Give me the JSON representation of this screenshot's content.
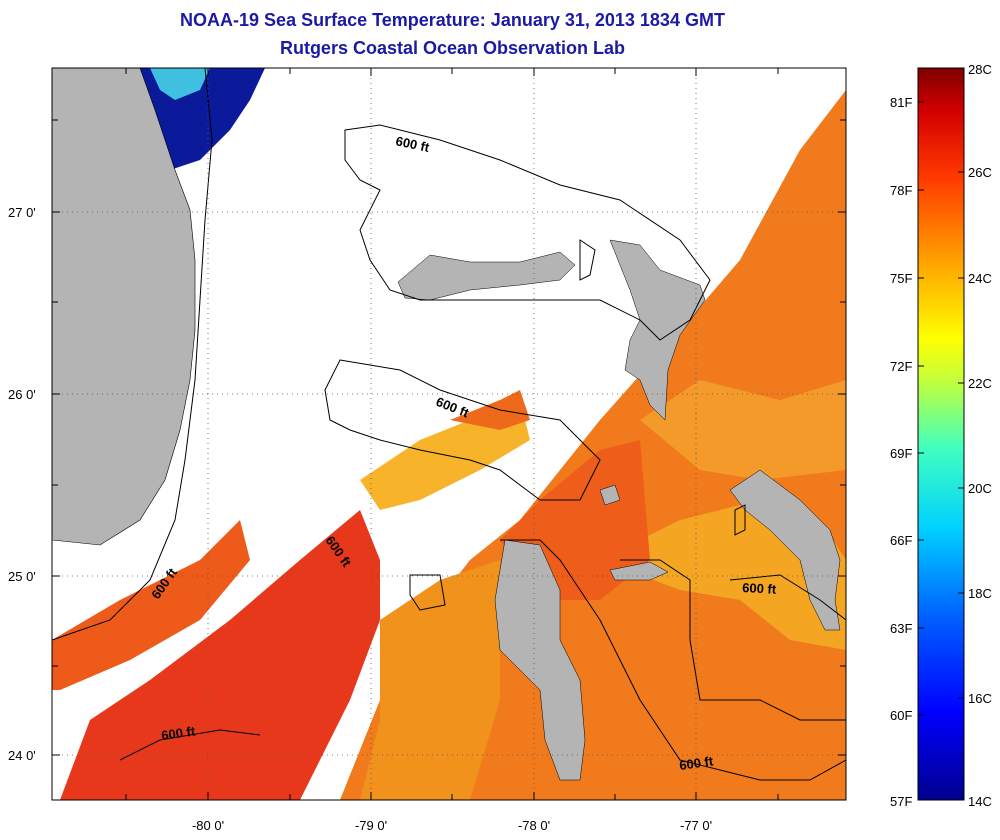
{
  "title": "NOAA-19 Sea Surface Temperature:  January 31, 2013 1834 GMT",
  "subtitle": "Rutgers Coastal Ocean Observation Lab",
  "lat_labels": [
    "27 0'",
    "26 0'",
    "25 0'",
    "24 0'"
  ],
  "lon_labels": [
    "-80 0'",
    "-79 0'",
    "-78 0'",
    "-77 0'"
  ],
  "contour_label": "600 ft",
  "colorbar": {
    "fahrenheit_labels": [
      "81F",
      "78F",
      "75F",
      "72F",
      "69F",
      "66F",
      "63F",
      "60F",
      "57F"
    ],
    "celsius_labels": [
      "28C",
      "26C",
      "24C",
      "22C",
      "20C",
      "18C",
      "16C",
      "14C"
    ],
    "range_c": [
      14,
      28
    ]
  },
  "colors": {
    "title": "#1a1aa6",
    "land": "#b4b4b4",
    "cloud": "#ffffff",
    "sst_warm": "#e8401c",
    "sst_orange": "#f07a1c",
    "sst_cool": "#0a1a9a"
  }
}
